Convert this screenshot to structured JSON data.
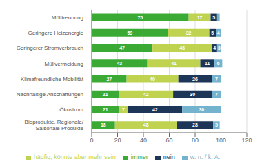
{
  "chart_data": {
    "type": "bar",
    "orientation": "horizontal",
    "stacked": true,
    "data_labels": true,
    "grid": true,
    "legend": "bottom",
    "categories": [
      "Mülltrennung",
      "Geringere Heizenergie",
      "Geringerer Stromverbrauch",
      "Müllvermeidung",
      "Klimafreundliche Mobilität",
      "Nachhaltige Anschaffungen",
      "Ökostrom",
      "Bioprodukte, Regionale/\nSaisonale Produkte"
    ],
    "series": [
      {
        "name": "immer",
        "color": "#3aaa35",
        "values": [
          75,
          59,
          47,
          43,
          27,
          21,
          21,
          18
        ]
      },
      {
        "name": "häufig, könnte aber mehr sein",
        "color": "#bfd350",
        "values": [
          17,
          32,
          46,
          41,
          40,
          42,
          7,
          48
        ]
      },
      {
        "name": "nein",
        "color": "#1d3557",
        "values": [
          5,
          5,
          4,
          11,
          26,
          30,
          42,
          28
        ]
      },
      {
        "name": "w. n. / k. A.",
        "color": "#74b3ce",
        "values": [
          2,
          4,
          3,
          6,
          7,
          7,
          30,
          5
        ],
        "value_labels": [
          null,
          "4",
          "3",
          "6",
          "7",
          "7",
          "30",
          "5"
        ]
      }
    ],
    "xlim": [
      0,
      120
    ],
    "xticks": [
      0,
      20,
      40,
      60,
      80,
      100,
      120
    ]
  }
}
